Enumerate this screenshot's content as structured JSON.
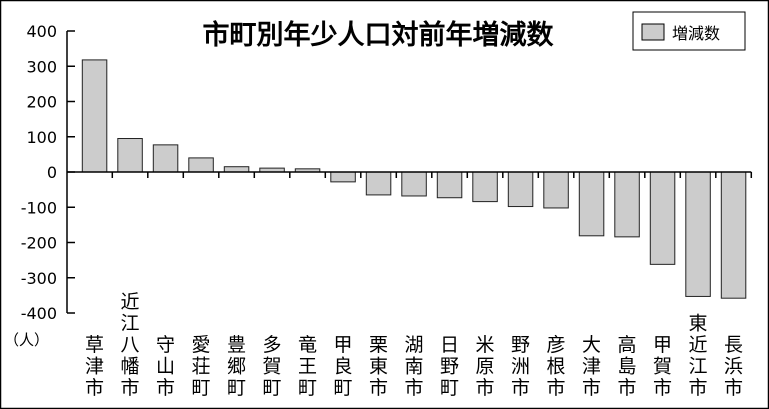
{
  "chart_data": {
    "type": "bar",
    "title": "市町別年少人口対前年増減数",
    "ylabel": "（人）",
    "ylim": [
      -400,
      400
    ],
    "yticks": [
      400,
      300,
      200,
      100,
      0,
      -100,
      -200,
      -300,
      -400
    ],
    "grid": false,
    "legend_position": "top-right",
    "series": [
      {
        "name": "増減数",
        "color": "#cccccc",
        "values": [
          318,
          95,
          77,
          40,
          15,
          11,
          9,
          -28,
          -65,
          -68,
          -73,
          -84,
          -98,
          -102,
          -181,
          -184,
          -262,
          -353,
          -358
        ]
      }
    ],
    "categories": [
      "草津市",
      "近江八幡市",
      "守山市",
      "愛荘町",
      "豊郷町",
      "多賀町",
      "竜王町",
      "甲良町",
      "栗東市",
      "湖南市",
      "日野町",
      "米原市",
      "野洲市",
      "彦根市",
      "大津市",
      "高島市",
      "甲賀市",
      "東近江市",
      "長浜市"
    ]
  }
}
